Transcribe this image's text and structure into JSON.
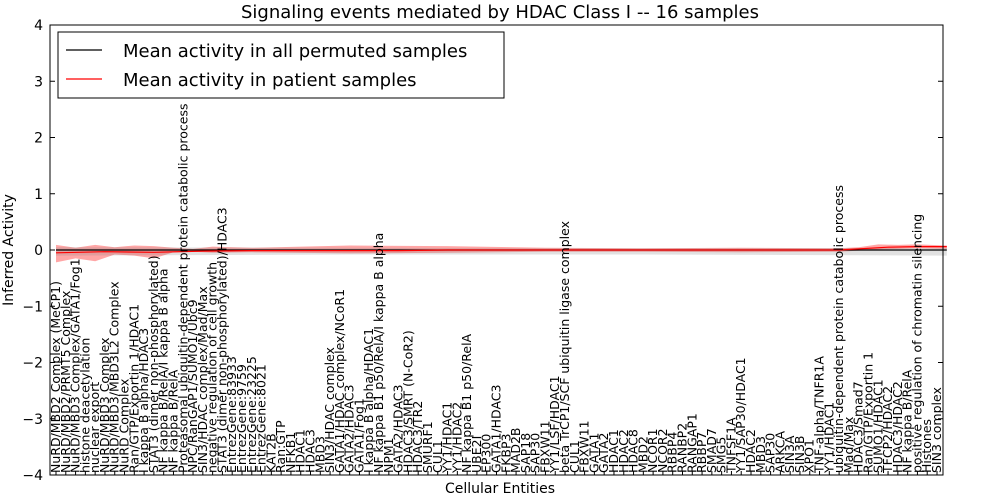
{
  "chart_data": {
    "type": "line",
    "title": "Signaling events mediated by HDAC Class I -- 16 samples",
    "xlabel": "Cellular Entities",
    "ylabel": "Inferred Activity",
    "ylim": [
      -4,
      4
    ],
    "yticks": [
      -4,
      -3,
      -2,
      -1,
      0,
      1,
      2,
      3,
      4
    ],
    "ytick_labels": [
      "−4",
      "−3",
      "−2",
      "−1",
      "0",
      "1",
      "2",
      "3",
      "4"
    ],
    "legend": {
      "position": "top-left",
      "entries": [
        {
          "label": "Mean activity in all permuted samples",
          "color": "#000000"
        },
        {
          "label": "Mean activity in patient samples",
          "color": "#ff0000"
        }
      ]
    },
    "categories": [
      "NuRD/MBD2 Complex (MeCP1)",
      "NuRD/MBD2/PRMT5 Complex",
      "NuRD/MBD3 Complex/GATA1/Fog1",
      "histone deacetylation",
      "nuclear export",
      "NuRD/MBD3 Complex",
      "NuRD/MBD3/MBD3L2 Complex",
      "NuRD Complex",
      "Ran/GTP/Exportin 1/HDAC1",
      "I kappa B alpha/HDAC3",
      "STAT3 (dimer non-phosphorylated)",
      "NF kappa B/RelA/I kappa B alpha",
      "NF kappa B/RelA",
      "Proteasomal ubiquitin-dependent protein catabolic process",
      "NPC/RanGAP1/SUMO1/Ubc9",
      "SIN3/HDAC complex/Mad/Max",
      "negative regulation of cell growth",
      "STAT3 (dimer non-phosphorylated)/HDAC3",
      "EntrezGene:83933",
      "EntrezGene:9759",
      "EntrezGene:23225",
      "EntrezGene:8021",
      "KAT2B",
      "Ran:GTP",
      "NFKB1",
      "HDAC1",
      "HDAC3",
      "MBD3",
      "SIN3/HDAC complex",
      "GATA1/HDAC complex/NCoR1",
      "GATA2/HDAC3",
      "GATA1/Fog1",
      "I kappa B alpha/HDAC1",
      "NF kappa B1 p50/RelA/I kappa B alpha",
      "NPM1",
      "GATA2/HDAC3",
      "HDAC3/SMRT (N-CoR2)",
      "HDAC3/TR2",
      "SMURF1",
      "CUL1",
      "YY1/HDAC1",
      "YY1/HDAC2",
      "NF kappa B1 p50/RelA",
      "UBE2I",
      "EP300",
      "GATA1/HDAC3",
      "FKBP3",
      "MAD2B",
      "SAP18",
      "SAP30",
      "FBXW11",
      "YY1/LSF/HDAC1",
      "beta TrCP1/SCF ubiquitin ligase complex",
      "CUL1",
      "FBXW11",
      "GATA1",
      "GATA2",
      "HDAC1",
      "HDAC2",
      "HDAC8",
      "MBD2",
      "NCOR1",
      "NCOR2",
      "RBBP4",
      "RANBP2",
      "RANGAP1",
      "RBBP7",
      "SMAD7",
      "SMG5",
      "TNFSF1A",
      "YY1/SAP30/HDAC1",
      "HDAC2",
      "MBD3",
      "SAP30",
      "ARKCA",
      "SIN3A",
      "SIN3B",
      "XPO1",
      "TNF-alpha/TNFR1A",
      "YY1/HDAC1",
      "ubiquitin-dependent protein catabolic process",
      "Mad/Max",
      "HDAC3/Smad7",
      "Ran/GTP/Exportin 1",
      "SUMO1/HDAC1",
      "TFCP2/HDAC2",
      "HDAC3/HDAC2",
      "NF kappa B/RelA",
      "positive regulation of chromatin silencing",
      "Histones",
      "SIN3 complex"
    ],
    "series": [
      {
        "name": "Mean activity in all permuted samples",
        "color": "#000000",
        "x": [
          0,
          91
        ],
        "values": [
          0,
          0
        ]
      },
      {
        "name": "Mean activity in patient samples",
        "color": "#ff0000",
        "x": [
          0,
          5,
          10,
          15,
          20,
          25,
          30,
          35,
          40,
          45,
          50,
          55,
          60,
          65,
          70,
          75,
          80,
          85,
          88,
          91
        ],
        "values": [
          -0.05,
          -0.03,
          -0.04,
          -0.02,
          -0.01,
          -0.01,
          -0.01,
          -0.01,
          0.0,
          0.0,
          0.0,
          0.0,
          0.0,
          0.0,
          0.0,
          0.0,
          0.0,
          0.05,
          0.06,
          0.06
        ]
      }
    ],
    "bands": [
      {
        "name": "patient range",
        "color": "#ff0000",
        "x": [
          0,
          2,
          4,
          6,
          8,
          10,
          12,
          14,
          16,
          20,
          30,
          40,
          50,
          60,
          70,
          80,
          82,
          84,
          86,
          88,
          91
        ],
        "lower": [
          -0.22,
          -0.15,
          -0.2,
          -0.08,
          -0.1,
          -0.15,
          -0.04,
          -0.03,
          -0.05,
          -0.04,
          -0.06,
          -0.05,
          -0.03,
          -0.03,
          -0.04,
          -0.03,
          -0.01,
          0.01,
          0.02,
          0.03,
          0.02
        ],
        "upper": [
          0.09,
          0.04,
          0.09,
          0.05,
          0.08,
          0.07,
          0.04,
          0.02,
          0.06,
          0.04,
          0.08,
          0.07,
          0.04,
          0.03,
          0.04,
          0.03,
          0.05,
          0.1,
          0.09,
          0.1,
          0.08
        ]
      },
      {
        "name": "permuted range",
        "color": "#888888",
        "x": [
          0,
          30,
          60,
          91
        ],
        "lower": [
          -0.1,
          -0.08,
          -0.08,
          -0.1
        ],
        "upper": [
          0.05,
          0.04,
          0.03,
          0.04
        ]
      }
    ]
  }
}
